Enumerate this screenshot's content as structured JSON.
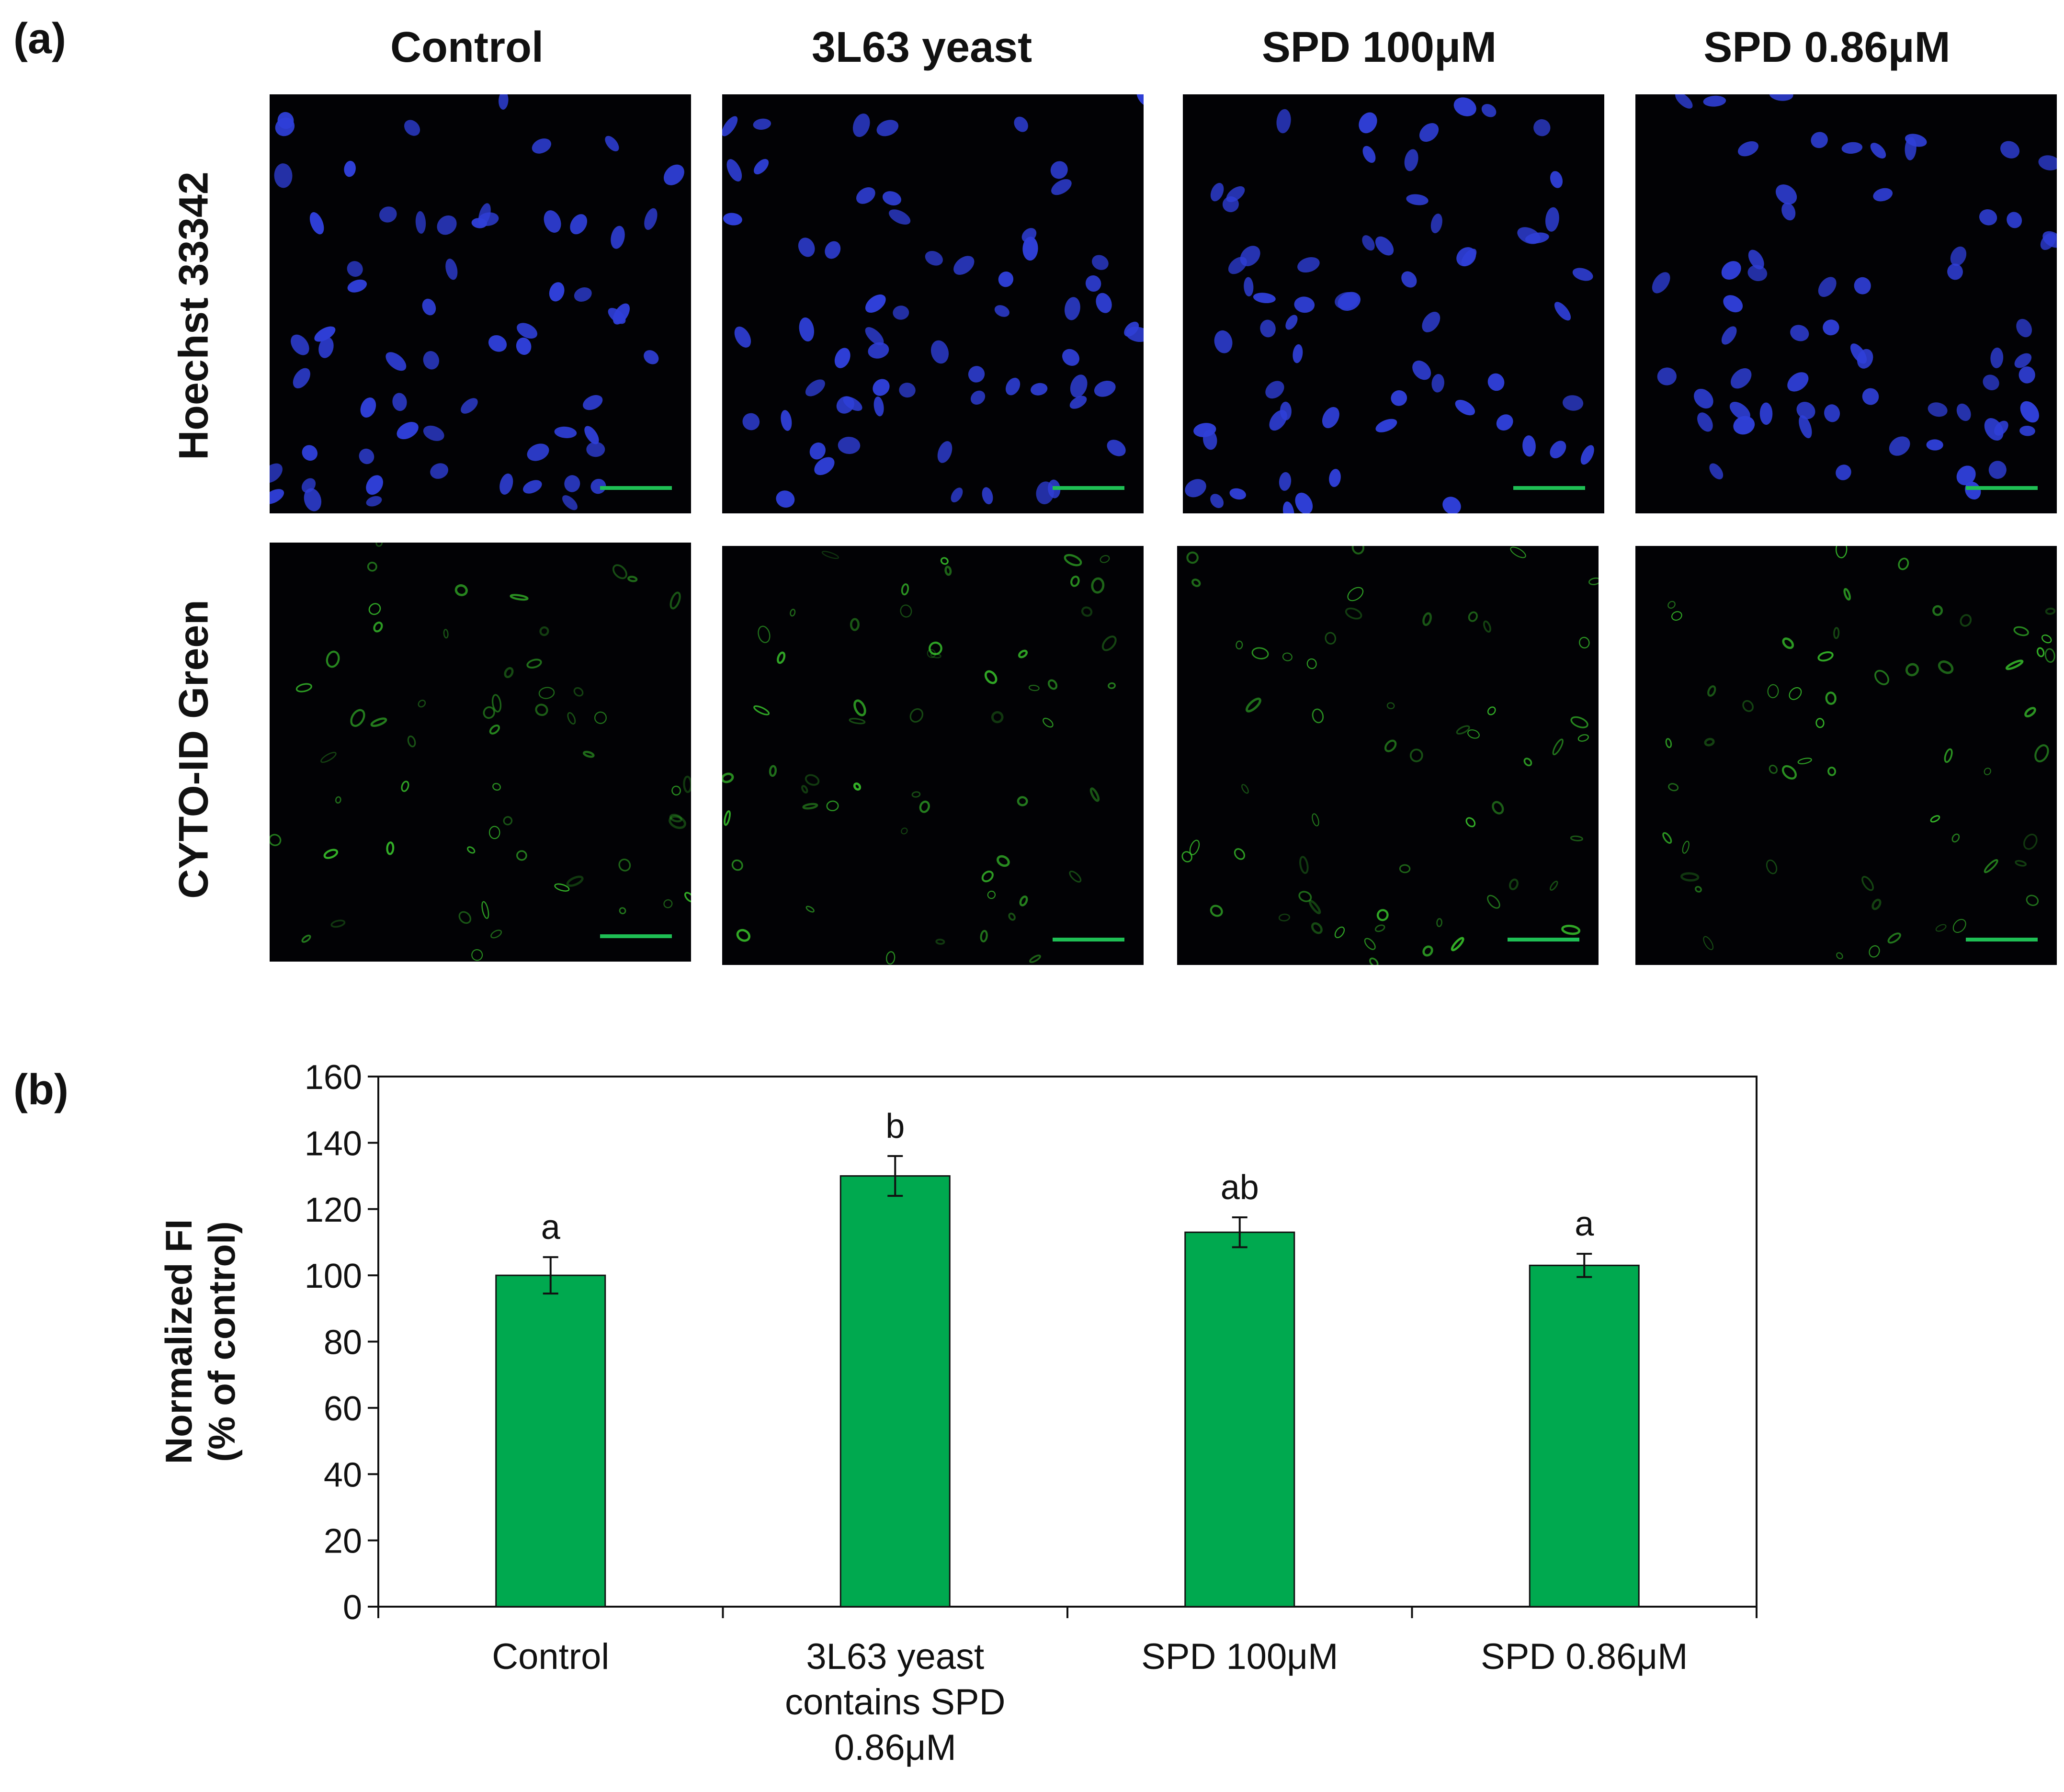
{
  "panels": {
    "a_label": "(a)",
    "b_label": "(b)"
  },
  "micrographs": {
    "columns": [
      "Control",
      "3L63 yeast",
      "SPD 100μM",
      "SPD 0.86μM"
    ],
    "rows": [
      "Hoechst 33342",
      "CYTO-ID Green"
    ],
    "colors": {
      "hoechst": "#2f3fd8",
      "cyto": "#3ccf2e",
      "background": "#020205",
      "scalebar": "#1fbf55"
    }
  },
  "chart_data": {
    "type": "bar",
    "categories": [
      "Control",
      "3L63 yeast contains SPD 0.86μM",
      "SPD 100μM",
      "SPD 0.86μM"
    ],
    "category_lines": [
      [
        "Control"
      ],
      [
        "3L63 yeast",
        "contains SPD",
        "0.86μM"
      ],
      [
        "SPD 100μM"
      ],
      [
        "SPD 0.86μM"
      ]
    ],
    "values": [
      100,
      130,
      113,
      103
    ],
    "errors": [
      5.5,
      6,
      4.5,
      3.5
    ],
    "significance": [
      "a",
      "b",
      "ab",
      "a"
    ],
    "ylabel_lines": [
      "Normalized FI",
      "(% of control)"
    ],
    "ylim": [
      0,
      160
    ],
    "yticks": [
      0,
      20,
      40,
      60,
      80,
      100,
      120,
      140,
      160
    ],
    "bar_color": "#00a94f",
    "grid": false,
    "legend": "none"
  }
}
